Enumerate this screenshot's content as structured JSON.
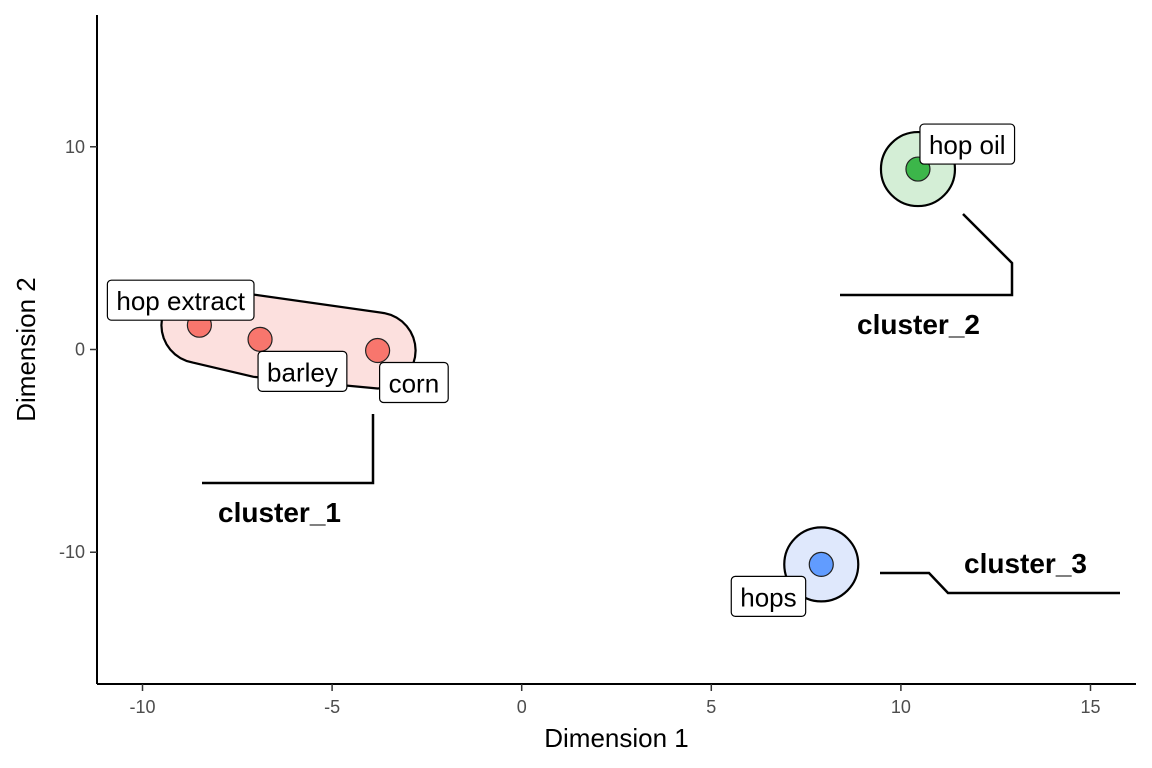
{
  "chart_data": {
    "type": "scatter",
    "xlabel": "Dimension 1",
    "ylabel": "Dimension 2",
    "xlim": [
      -11.2,
      16.2
    ],
    "ylim": [
      -16.5,
      16.5
    ],
    "xticks": [
      -10,
      -5,
      0,
      5,
      10,
      15
    ],
    "yticks": [
      -10,
      0,
      10
    ],
    "grid": false,
    "points": [
      {
        "label": "hop extract",
        "x": -8.5,
        "y": 1.2,
        "cluster": "cluster_1"
      },
      {
        "label": "barley",
        "x": -6.9,
        "y": 0.5,
        "cluster": "cluster_1"
      },
      {
        "label": "corn",
        "x": -3.8,
        "y": -0.05,
        "cluster": "cluster_1"
      },
      {
        "label": "hop oil",
        "x": 10.45,
        "y": 8.9,
        "cluster": "cluster_2"
      },
      {
        "label": "hops",
        "x": 7.9,
        "y": -10.6,
        "cluster": "cluster_3"
      }
    ],
    "clusters": [
      {
        "name": "cluster_1",
        "color": "#F8766D",
        "fill": "#FCE0DE"
      },
      {
        "name": "cluster_2",
        "color": "#3CB64A",
        "fill": "#D4EED6"
      },
      {
        "name": "cluster_3",
        "color": "#619CFF",
        "fill": "#DFE8FC"
      }
    ]
  }
}
